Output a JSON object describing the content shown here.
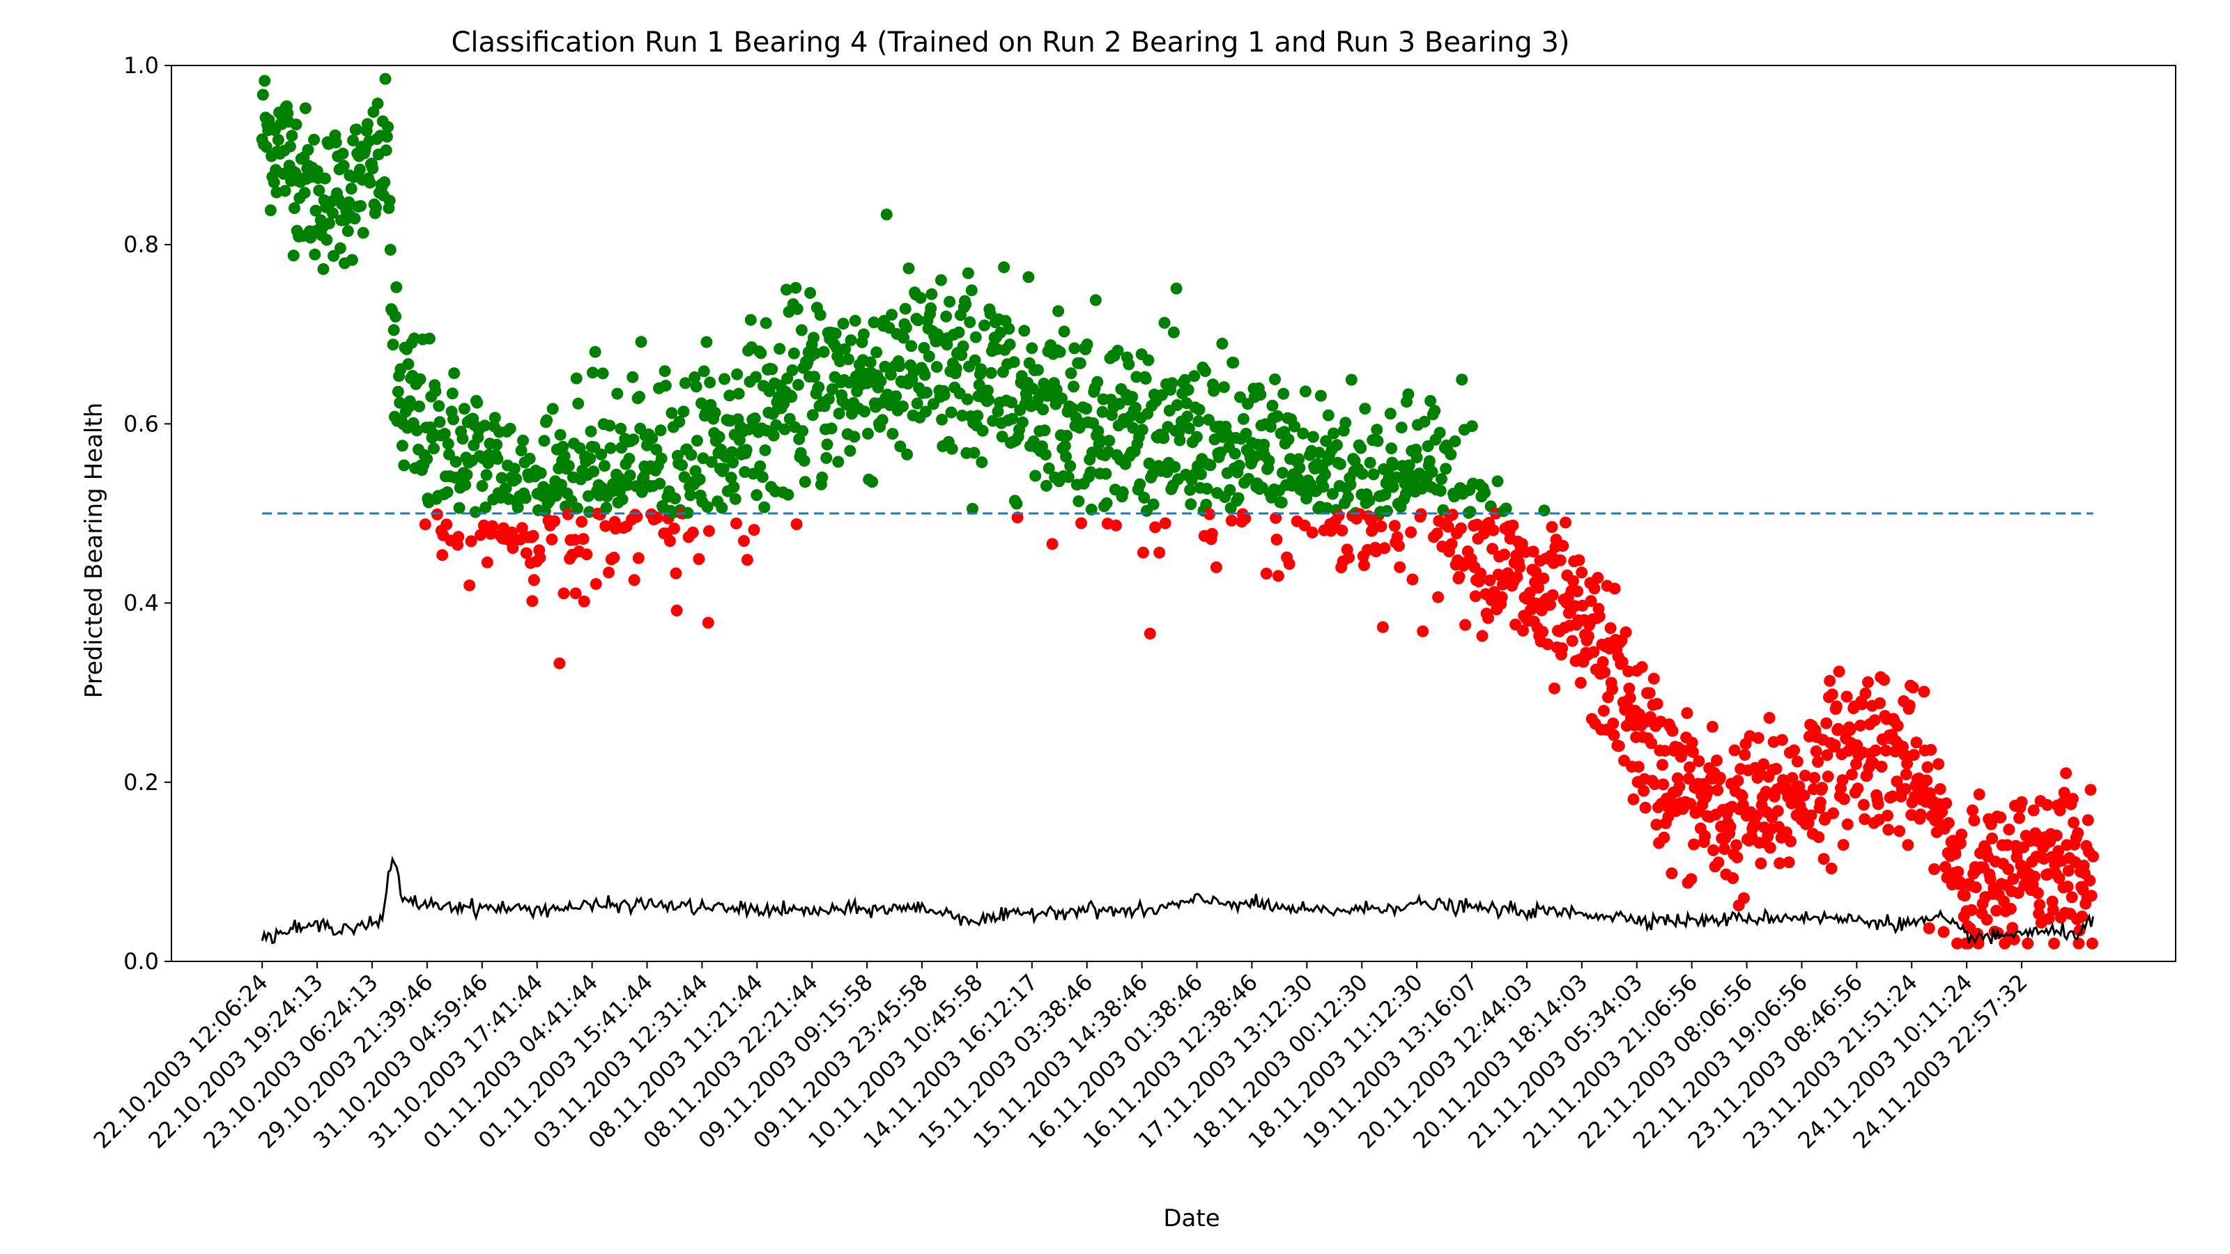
{
  "chart_data": {
    "type": "scatter",
    "title": "Classification Run 1 Bearing 4 (Trained on Run 2 Bearing 1 and Run 3 Bearing 3)",
    "xlabel": "Date",
    "ylabel": "Predicted Bearing Health",
    "ylim": [
      0.0,
      1.0
    ],
    "yticks": [
      "0.0",
      "0.2",
      "0.4",
      "0.6",
      "0.8",
      "1.0"
    ],
    "xticks": [
      "22.10.2003 12:06:24",
      "22.10.2003 19:24:13",
      "23.10.2003 06:24:13",
      "29.10.2003 21:39:46",
      "31.10.2003 04:59:46",
      "31.10.2003 17:41:44",
      "01.11.2003 04:41:44",
      "01.11.2003 15:41:44",
      "03.11.2003 12:31:44",
      "08.11.2003 11:21:44",
      "08.11.2003 22:21:44",
      "09.11.2003 09:15:58",
      "09.11.2003 23:45:58",
      "10.11.2003 10:45:58",
      "14.11.2003 16:12:17",
      "15.11.2003 03:38:46",
      "15.11.2003 14:38:46",
      "16.11.2003 01:38:46",
      "16.11.2003 12:38:46",
      "17.11.2003 13:12:30",
      "18.11.2003 00:12:30",
      "18.11.2003 11:12:30",
      "19.11.2003 13:16:07",
      "20.11.2003 12:44:03",
      "20.11.2003 18:14:03",
      "21.11.2003 05:34:03",
      "21.11.2003 21:06:56",
      "22.11.2003 08:06:56",
      "22.11.2003 19:06:56",
      "23.11.2003 08:46:56",
      "23.11.2003 21:51:24",
      "24.11.2003 10:11:24",
      "24.11.2003 22:57:32"
    ],
    "threshold": 0.5,
    "grid": false,
    "colors": {
      "healthy": "#008000",
      "faulty": "#ff0000",
      "threshold": "#1f77b4",
      "line": "#000000"
    },
    "health_trend": [
      [
        0.0,
        0.93
      ],
      [
        0.5,
        0.9
      ],
      [
        1.0,
        0.85
      ],
      [
        1.5,
        0.86
      ],
      [
        2.0,
        0.88
      ],
      [
        2.3,
        0.9
      ],
      [
        2.4,
        0.64
      ],
      [
        2.8,
        0.6
      ],
      [
        3.2,
        0.56
      ],
      [
        4.0,
        0.54
      ],
      [
        5.0,
        0.52
      ],
      [
        6.0,
        0.53
      ],
      [
        7.0,
        0.54
      ],
      [
        8.0,
        0.56
      ],
      [
        9.0,
        0.6
      ],
      [
        10.0,
        0.64
      ],
      [
        11.0,
        0.65
      ],
      [
        12.0,
        0.66
      ],
      [
        13.0,
        0.65
      ],
      [
        14.0,
        0.63
      ],
      [
        15.0,
        0.61
      ],
      [
        16.0,
        0.59
      ],
      [
        17.0,
        0.57
      ],
      [
        18.0,
        0.55
      ],
      [
        19.0,
        0.54
      ],
      [
        20.0,
        0.53
      ],
      [
        21.0,
        0.53
      ],
      [
        21.8,
        0.52
      ],
      [
        22.5,
        0.45
      ],
      [
        23.0,
        0.41
      ],
      [
        23.8,
        0.38
      ],
      [
        24.5,
        0.33
      ],
      [
        25.0,
        0.26
      ],
      [
        25.6,
        0.2
      ],
      [
        26.5,
        0.16
      ],
      [
        27.5,
        0.17
      ],
      [
        28.5,
        0.22
      ],
      [
        29.3,
        0.25
      ],
      [
        30.0,
        0.21
      ],
      [
        30.5,
        0.15
      ],
      [
        31.0,
        0.09
      ],
      [
        31.5,
        0.08
      ],
      [
        32.0,
        0.11
      ],
      [
        32.5,
        0.12
      ],
      [
        33.3,
        0.11
      ]
    ],
    "noise_line": [
      [
        0.0,
        0.025
      ],
      [
        0.5,
        0.035
      ],
      [
        1.0,
        0.04
      ],
      [
        1.5,
        0.038
      ],
      [
        2.0,
        0.042
      ],
      [
        2.2,
        0.045
      ],
      [
        2.3,
        0.1
      ],
      [
        2.35,
        0.112
      ],
      [
        2.45,
        0.1
      ],
      [
        2.55,
        0.068
      ],
      [
        3.0,
        0.064
      ],
      [
        4.0,
        0.06
      ],
      [
        5.0,
        0.058
      ],
      [
        6.0,
        0.062
      ],
      [
        7.0,
        0.064
      ],
      [
        8.0,
        0.06
      ],
      [
        9.0,
        0.058
      ],
      [
        10.0,
        0.056
      ],
      [
        11.0,
        0.058
      ],
      [
        12.0,
        0.06
      ],
      [
        12.7,
        0.05
      ],
      [
        13.0,
        0.045
      ],
      [
        14.0,
        0.055
      ],
      [
        15.0,
        0.058
      ],
      [
        16.0,
        0.055
      ],
      [
        17.0,
        0.068
      ],
      [
        18.0,
        0.064
      ],
      [
        19.0,
        0.056
      ],
      [
        20.0,
        0.058
      ],
      [
        21.0,
        0.064
      ],
      [
        22.0,
        0.06
      ],
      [
        23.0,
        0.056
      ],
      [
        24.0,
        0.054
      ],
      [
        25.0,
        0.048
      ],
      [
        26.0,
        0.045
      ],
      [
        27.0,
        0.048
      ],
      [
        28.0,
        0.05
      ],
      [
        29.0,
        0.046
      ],
      [
        30.0,
        0.042
      ],
      [
        30.5,
        0.048
      ],
      [
        31.0,
        0.03
      ],
      [
        31.5,
        0.025
      ],
      [
        32.0,
        0.033
      ],
      [
        32.5,
        0.032
      ],
      [
        33.0,
        0.032
      ],
      [
        33.3,
        0.045
      ]
    ],
    "n_points": 2156
  }
}
